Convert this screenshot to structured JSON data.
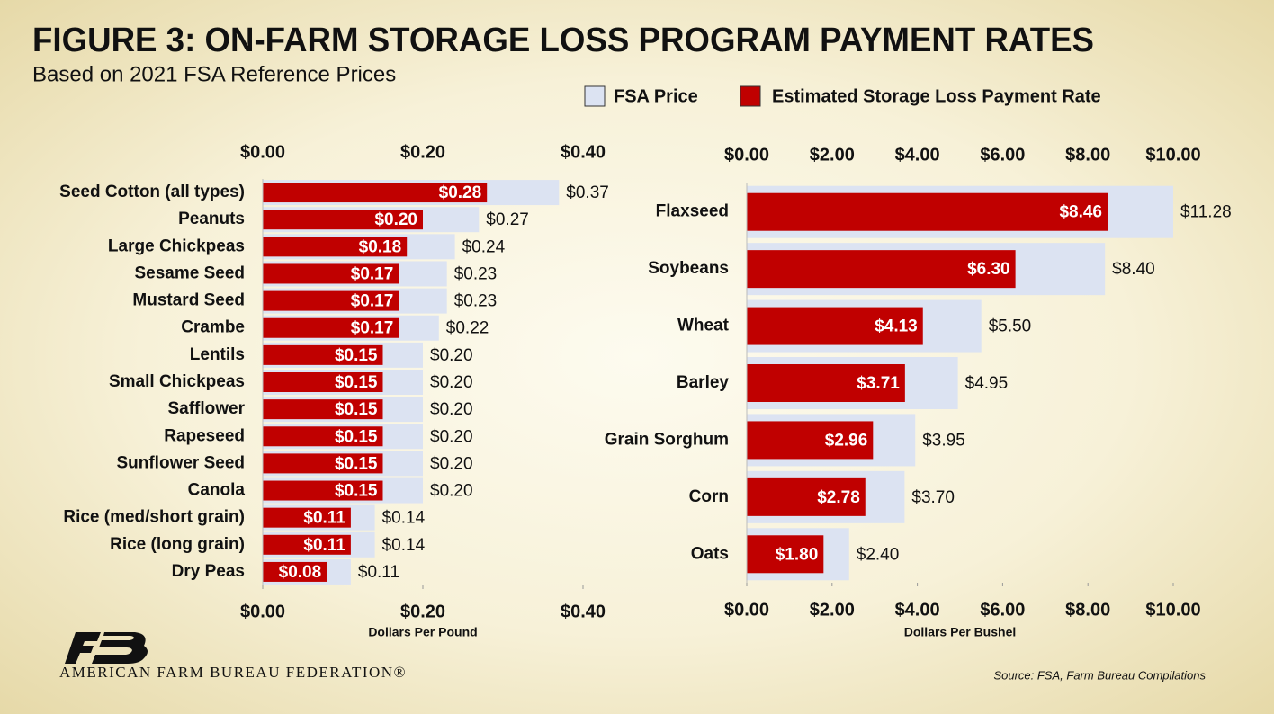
{
  "title": "FIGURE 3: ON-FARM STORAGE LOSS PROGRAM PAYMENT RATES",
  "subtitle": "Based on 2021 FSA Reference Prices",
  "organization": "AMERICAN FARM BUREAU FEDERATION®",
  "source": "Source: FSA, Farm Bureau Compilations",
  "chart_data": [
    {
      "type": "bar",
      "orientation": "horizontal",
      "xlabel": "Dollars Per Pound",
      "categories": [
        "Seed Cotton (all types)",
        "Peanuts",
        "Large Chickpeas",
        "Sesame Seed",
        "Mustard Seed",
        "Crambe",
        "Lentils",
        "Small Chickpeas",
        "Safflower",
        "Rapeseed",
        "Sunflower Seed",
        "Canola",
        "Rice (med/short grain)",
        "Rice (long grain)",
        "Dry Peas"
      ],
      "series": [
        {
          "name": "FSA Price",
          "color": "#dce3f2",
          "values": [
            0.37,
            0.27,
            0.24,
            0.23,
            0.23,
            0.22,
            0.2,
            0.2,
            0.2,
            0.2,
            0.2,
            0.2,
            0.14,
            0.14,
            0.11
          ],
          "value_labels": [
            "$0.37",
            "$0.27",
            "$0.24",
            "$0.23",
            "$0.23",
            "$0.22",
            "$0.20",
            "$0.20",
            "$0.20",
            "$0.20",
            "$0.20",
            "$0.20",
            "$0.14",
            "$0.14",
            "$0.11"
          ]
        },
        {
          "name": "Estimated Storage Loss Payment Rate",
          "color": "#c00000",
          "values": [
            0.28,
            0.2,
            0.18,
            0.17,
            0.17,
            0.17,
            0.15,
            0.15,
            0.15,
            0.15,
            0.15,
            0.15,
            0.11,
            0.11,
            0.08
          ],
          "value_labels": [
            "$0.28",
            "$0.20",
            "$0.18",
            "$0.17",
            "$0.17",
            "$0.17",
            "$0.15",
            "$0.15",
            "$0.15",
            "$0.15",
            "$0.15",
            "$0.15",
            "$0.11",
            "$0.11",
            "$0.08"
          ]
        }
      ],
      "xlim": [
        0,
        0.4
      ],
      "xticks": [
        {
          "value": 0,
          "label": "$0.00"
        },
        {
          "value": 0.2,
          "label": "$0.20"
        },
        {
          "value": 0.4,
          "label": "$0.40"
        }
      ]
    },
    {
      "type": "bar",
      "orientation": "horizontal",
      "xlabel": "Dollars Per Bushel",
      "categories": [
        "Flaxseed",
        "Soybeans",
        "Wheat",
        "Barley",
        "Grain Sorghum",
        "Corn",
        "Oats"
      ],
      "series": [
        {
          "color": "#dce3f2",
          "values": [
            11.28,
            8.4,
            5.5,
            4.95,
            3.95,
            3.7,
            2.4
          ],
          "value_labels": [
            "$11.28",
            "$8.40",
            "$5.50",
            "$4.95",
            "$3.95",
            "$3.70",
            "$2.40"
          ]
        },
        {
          "color": "#c00000",
          "values": [
            8.46,
            6.3,
            4.13,
            3.71,
            2.96,
            2.78,
            1.8
          ],
          "value_labels": [
            "$8.46",
            "$6.30",
            "$4.13",
            "$3.71",
            "$2.96",
            "$2.78",
            "$1.80"
          ]
        }
      ],
      "xlim": [
        0,
        10
      ],
      "xticks": [
        {
          "value": 0,
          "label": "$0.00"
        },
        {
          "value": 2,
          "label": "$2.00"
        },
        {
          "value": 4,
          "label": "$4.00"
        },
        {
          "value": 6,
          "label": "$6.00"
        },
        {
          "value": 8,
          "label": "$8.00"
        },
        {
          "value": 10,
          "label": "$10.00"
        }
      ]
    }
  ]
}
